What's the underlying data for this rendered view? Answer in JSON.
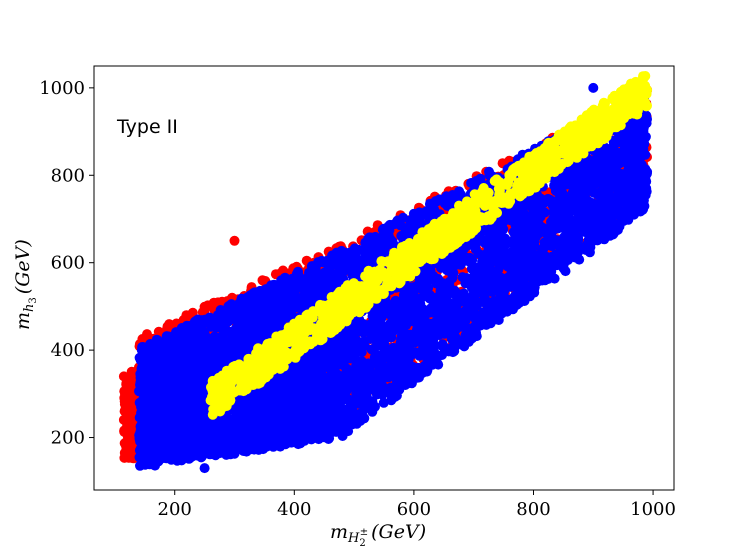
{
  "chart_data": {
    "type": "scatter",
    "title": "",
    "annotation": "Type II",
    "xlabel": {
      "base": "m",
      "sub": "H",
      "subsub": "2",
      "sup": "±",
      "unit": "(GeV)"
    },
    "ylabel": {
      "base": "m",
      "sub": "h",
      "subsub": "3",
      "unit": "(GeV)"
    },
    "xlim": [
      65,
      1035
    ],
    "ylim": [
      80,
      1050
    ],
    "xticks": [
      200,
      400,
      600,
      800,
      1000
    ],
    "yticks": [
      200,
      400,
      600,
      800,
      1000
    ],
    "grid": false,
    "legend": "none",
    "series": [
      {
        "color": "#ff0000",
        "regions": [
          {
            "x": [
              115,
              160
            ],
            "ylo": [
              150,
              155
            ],
            "yhi": [
              350,
              355
            ],
            "count": 350
          },
          {
            "x": [
              140,
              480
            ],
            "ylo": [
              150,
              225
            ],
            "yhi": [
              430,
              645
            ],
            "count": 900
          },
          {
            "x": [
              480,
              990
            ],
            "ylo": [
              225,
              745
            ],
            "yhi": [
              645,
              1000
            ],
            "count": 900
          }
        ],
        "points": [
          [
            115,
            340
          ],
          [
            118,
            160
          ],
          [
            155,
            420
          ],
          [
            300,
            650
          ],
          [
            480,
            300
          ],
          [
            600,
            700
          ],
          [
            990,
            995
          ],
          [
            850,
            690
          ]
        ]
      },
      {
        "color": "#0000ff",
        "regions": [
          {
            "x": [
              140,
              480
            ],
            "ylo": [
              130,
              200
            ],
            "yhi": [
              405,
              630
            ],
            "count": 2400
          },
          {
            "x": [
              480,
              990
            ],
            "ylo": [
              200,
              720
            ],
            "yhi": [
              630,
              1000
            ],
            "count": 2400
          },
          {
            "x": [
              150,
              480
            ],
            "ylo": [
              140,
              210
            ],
            "yhi": [
              300,
              350
            ],
            "count": 600
          }
        ],
        "points": [
          [
            145,
            400
          ],
          [
            250,
            130
          ],
          [
            640,
            480
          ],
          [
            830,
            660
          ],
          [
            900,
            1000
          ]
        ]
      },
      {
        "color": "#ffff00",
        "regions": [
          {
            "x": [
              260,
              990
            ],
            "yc": [
              285,
              995
            ],
            "halfwidth": 42,
            "count": 1100
          }
        ],
        "points": [
          [
            260,
            285
          ],
          [
            990,
            995
          ],
          [
            975,
            990
          ]
        ]
      }
    ]
  }
}
